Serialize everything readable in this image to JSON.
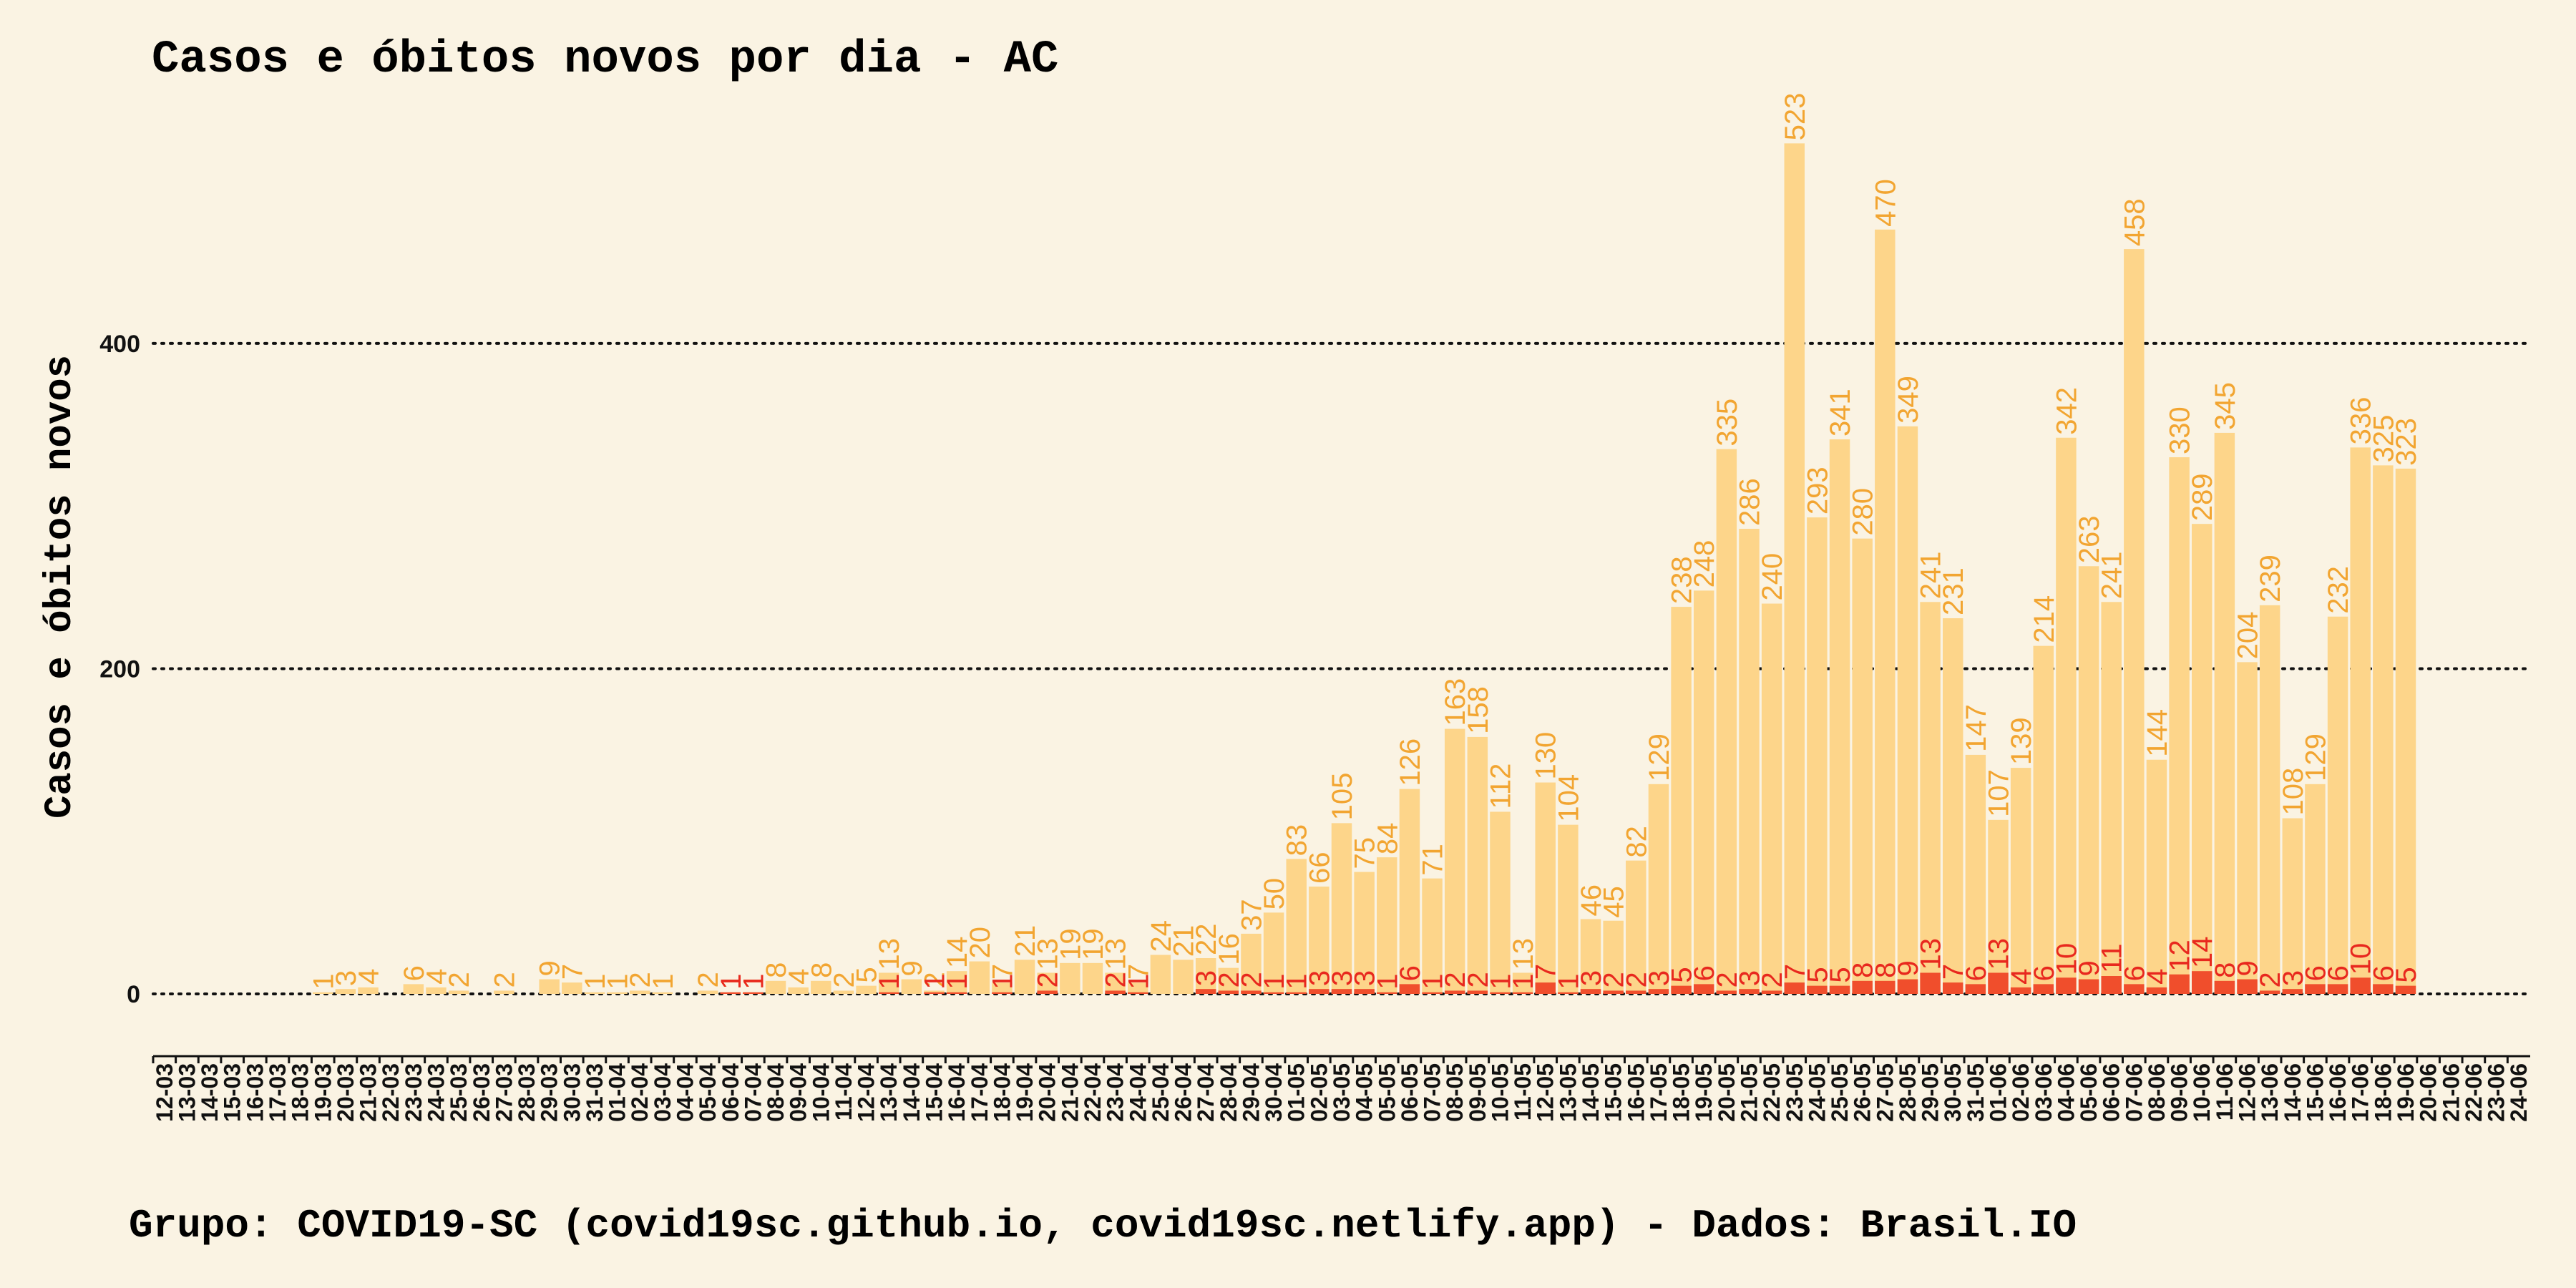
{
  "chart_data": {
    "type": "bar",
    "title": "Casos e óbitos novos por dia -  AC",
    "y_label": "Casos e óbitos novos",
    "footer": "Grupo: COVID19-SC (covid19sc.github.io, covid19sc.netlify.app)   -  Dados: Brasil.IO",
    "categories": [
      "12-03",
      "13-03",
      "14-03",
      "15-03",
      "16-03",
      "17-03",
      "18-03",
      "19-03",
      "20-03",
      "21-03",
      "22-03",
      "23-03",
      "24-03",
      "25-03",
      "26-03",
      "27-03",
      "28-03",
      "29-03",
      "30-03",
      "31-03",
      "01-04",
      "02-04",
      "03-04",
      "04-04",
      "05-04",
      "06-04",
      "07-04",
      "08-04",
      "09-04",
      "10-04",
      "11-04",
      "12-04",
      "13-04",
      "14-04",
      "15-04",
      "16-04",
      "17-04",
      "18-04",
      "19-04",
      "20-04",
      "21-04",
      "22-04",
      "23-04",
      "24-04",
      "25-04",
      "26-04",
      "27-04",
      "28-04",
      "29-04",
      "30-04",
      "01-05",
      "02-05",
      "03-05",
      "04-05",
      "05-05",
      "06-05",
      "07-05",
      "08-05",
      "09-05",
      "10-05",
      "11-05",
      "12-05",
      "13-05",
      "14-05",
      "15-05",
      "16-05",
      "17-05",
      "18-05",
      "19-05",
      "20-05",
      "21-05",
      "22-05",
      "23-05",
      "24-05",
      "25-05",
      "26-05",
      "27-05",
      "28-05",
      "29-05",
      "30-05",
      "31-05",
      "01-06",
      "02-06",
      "03-06",
      "04-06",
      "05-06",
      "06-06",
      "07-06",
      "08-06",
      "09-06",
      "10-06",
      "11-06",
      "12-06",
      "13-06",
      "14-06",
      "15-06",
      "16-06",
      "17-06",
      "18-06",
      "19-06",
      "20-06",
      "21-06",
      "22-06",
      "23-06",
      "24-06"
    ],
    "series": [
      {
        "name": "Casos",
        "color": "#fdd58a",
        "label_color": "#f2a531",
        "values": [
          null,
          null,
          null,
          null,
          null,
          null,
          null,
          1,
          3,
          4,
          null,
          6,
          4,
          2,
          null,
          2,
          null,
          9,
          7,
          1,
          1,
          2,
          1,
          null,
          2,
          1,
          1,
          8,
          4,
          8,
          2,
          5,
          13,
          9,
          2,
          14,
          20,
          7,
          21,
          13,
          19,
          19,
          13,
          7,
          24,
          21,
          22,
          16,
          37,
          50,
          83,
          66,
          105,
          75,
          84,
          126,
          71,
          163,
          158,
          112,
          13,
          130,
          104,
          46,
          45,
          82,
          129,
          238,
          248,
          335,
          286,
          240,
          523,
          293,
          341,
          280,
          470,
          349,
          241,
          231,
          147,
          107,
          139,
          214,
          342,
          263,
          241,
          458,
          144,
          330,
          289,
          345,
          204,
          239,
          108,
          129,
          232,
          336,
          325,
          323,
          null,
          null,
          null,
          null,
          null
        ]
      },
      {
        "name": "Óbitos",
        "color": "#f04e2c",
        "label_color": "#e8281e",
        "values": [
          null,
          null,
          null,
          null,
          null,
          null,
          null,
          null,
          null,
          null,
          null,
          null,
          null,
          null,
          null,
          null,
          null,
          null,
          null,
          null,
          null,
          null,
          null,
          null,
          null,
          1,
          1,
          null,
          null,
          null,
          null,
          null,
          1,
          null,
          1,
          1,
          null,
          1,
          null,
          2,
          null,
          null,
          2,
          1,
          null,
          null,
          3,
          2,
          2,
          1,
          1,
          3,
          3,
          3,
          1,
          6,
          1,
          2,
          2,
          1,
          1,
          7,
          1,
          3,
          2,
          2,
          3,
          5,
          6,
          2,
          3,
          2,
          7,
          5,
          5,
          8,
          8,
          9,
          13,
          7,
          6,
          13,
          4,
          6,
          10,
          9,
          11,
          6,
          4,
          12,
          14,
          8,
          9,
          2,
          3,
          6,
          6,
          10,
          6,
          5,
          null,
          null,
          null,
          null,
          null
        ]
      }
    ],
    "ylim": [
      0,
      550
    ],
    "yticks": [
      0,
      200,
      400
    ],
    "grid": true
  }
}
